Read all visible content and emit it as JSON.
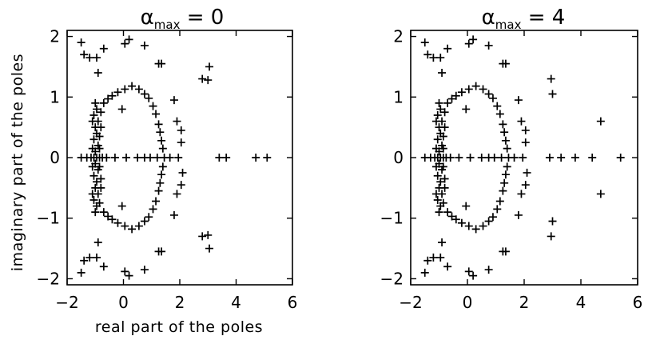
{
  "chart_data": [
    {
      "type": "scatter",
      "marker": "plus",
      "title": {
        "symbol": "α",
        "subscript": "max",
        "rest": " = 0"
      },
      "xlabel": "real part of the poles",
      "ylabel": "imaginary part of the poles",
      "xlim": [
        -2,
        6
      ],
      "ylim": [
        -2.1,
        2.1
      ],
      "xticks": [
        -2,
        0,
        2,
        4,
        6
      ],
      "yticks": [
        -2,
        -1,
        0,
        1,
        2
      ],
      "grid": false,
      "points": [
        [
          -1.5,
          0
        ],
        [
          -1.3,
          0
        ],
        [
          -1.15,
          0
        ],
        [
          -1.05,
          0
        ],
        [
          -0.95,
          0
        ],
        [
          -0.85,
          0
        ],
        [
          -0.75,
          0
        ],
        [
          -0.6,
          0
        ],
        [
          -0.3,
          0
        ],
        [
          0.1,
          0
        ],
        [
          0.5,
          0
        ],
        [
          0.75,
          0
        ],
        [
          0.95,
          0
        ],
        [
          1.2,
          0
        ],
        [
          1.45,
          0
        ],
        [
          1.65,
          0
        ],
        [
          1.95,
          0
        ],
        [
          3.4,
          0
        ],
        [
          3.65,
          0
        ],
        [
          4.7,
          0
        ],
        [
          5.1,
          0
        ],
        [
          -1.0,
          0.9
        ],
        [
          -0.95,
          0.8
        ],
        [
          -1.05,
          0.7
        ],
        [
          -0.9,
          0.6
        ],
        [
          -1.0,
          0.5
        ],
        [
          -0.95,
          0.4
        ],
        [
          -1.05,
          0.3
        ],
        [
          -0.9,
          0.2
        ],
        [
          -1.0,
          0.1
        ],
        [
          -1.0,
          -0.9
        ],
        [
          -0.95,
          -0.8
        ],
        [
          -1.05,
          -0.7
        ],
        [
          -0.9,
          -0.6
        ],
        [
          -1.0,
          -0.5
        ],
        [
          -0.95,
          -0.4
        ],
        [
          -1.05,
          -0.3
        ],
        [
          -0.9,
          -0.2
        ],
        [
          -1.0,
          -0.1
        ],
        [
          -0.8,
          0.75
        ],
        [
          -0.85,
          0.35
        ],
        [
          -0.8,
          -0.35
        ],
        [
          -0.85,
          -0.75
        ],
        [
          -0.8,
          0.5
        ],
        [
          -0.8,
          -0.5
        ],
        [
          -0.85,
          0.15
        ],
        [
          -0.85,
          -0.15
        ],
        [
          -1.1,
          0.15
        ],
        [
          -1.1,
          -0.15
        ],
        [
          -1.1,
          0.6
        ],
        [
          -1.1,
          -0.6
        ],
        [
          -0.7,
          0.9
        ],
        [
          -0.55,
          0.97
        ],
        [
          -0.4,
          1.02
        ],
        [
          -0.2,
          1.08
        ],
        [
          0.05,
          1.13
        ],
        [
          0.3,
          1.18
        ],
        [
          0.55,
          1.13
        ],
        [
          0.75,
          1.05
        ],
        [
          0.9,
          0.98
        ],
        [
          1.05,
          0.85
        ],
        [
          1.15,
          0.72
        ],
        [
          1.25,
          0.55
        ],
        [
          1.3,
          0.42
        ],
        [
          1.35,
          0.28
        ],
        [
          1.4,
          0.15
        ],
        [
          -0.7,
          -0.9
        ],
        [
          -0.55,
          -0.97
        ],
        [
          -0.4,
          -1.02
        ],
        [
          -0.2,
          -1.08
        ],
        [
          0.05,
          -1.13
        ],
        [
          0.3,
          -1.18
        ],
        [
          0.55,
          -1.13
        ],
        [
          0.75,
          -1.05
        ],
        [
          0.9,
          -0.98
        ],
        [
          1.05,
          -0.85
        ],
        [
          1.15,
          -0.72
        ],
        [
          1.25,
          -0.55
        ],
        [
          1.3,
          -0.42
        ],
        [
          1.35,
          -0.28
        ],
        [
          1.4,
          -0.15
        ],
        [
          -0.9,
          1.4
        ],
        [
          -0.9,
          -1.4
        ],
        [
          -0.05,
          0.8
        ],
        [
          -0.05,
          -0.8
        ],
        [
          1.9,
          0.6
        ],
        [
          2.05,
          0.45
        ],
        [
          1.9,
          -0.6
        ],
        [
          2.05,
          -0.45
        ],
        [
          2.05,
          0.25
        ],
        [
          2.1,
          -0.25
        ],
        [
          1.8,
          0.95
        ],
        [
          1.8,
          -0.95
        ],
        [
          -1.5,
          1.9
        ],
        [
          -1.2,
          1.65
        ],
        [
          -1.4,
          1.7
        ],
        [
          -0.7,
          1.8
        ],
        [
          -0.95,
          1.65
        ],
        [
          0.2,
          1.95
        ],
        [
          0.05,
          1.88
        ],
        [
          0.75,
          1.85
        ],
        [
          1.25,
          1.55
        ],
        [
          1.35,
          1.55
        ],
        [
          2.8,
          1.3
        ],
        [
          3.0,
          1.28
        ],
        [
          3.05,
          1.5
        ],
        [
          -1.5,
          -1.9
        ],
        [
          -1.2,
          -1.65
        ],
        [
          -1.4,
          -1.7
        ],
        [
          -0.7,
          -1.8
        ],
        [
          -0.95,
          -1.65
        ],
        [
          0.2,
          -1.95
        ],
        [
          0.05,
          -1.88
        ],
        [
          0.75,
          -1.85
        ],
        [
          1.25,
          -1.55
        ],
        [
          1.35,
          -1.55
        ],
        [
          2.8,
          -1.3
        ],
        [
          3.0,
          -1.28
        ],
        [
          3.05,
          -1.5
        ]
      ]
    },
    {
      "type": "scatter",
      "marker": "plus",
      "title": {
        "symbol": "α",
        "subscript": "max",
        "rest": " = 4"
      },
      "xlabel": "",
      "ylabel": "",
      "xlim": [
        -2,
        6
      ],
      "ylim": [
        -2.1,
        2.1
      ],
      "xticks": [
        -2,
        0,
        2,
        4,
        6
      ],
      "yticks": [
        -2,
        -1,
        0,
        1,
        2
      ],
      "grid": false,
      "points": [
        [
          -1.5,
          0
        ],
        [
          -1.3,
          0
        ],
        [
          -1.15,
          0
        ],
        [
          -1.05,
          0
        ],
        [
          -0.95,
          0
        ],
        [
          -0.85,
          0
        ],
        [
          -0.75,
          0
        ],
        [
          -0.6,
          0
        ],
        [
          -0.3,
          0
        ],
        [
          0.1,
          0
        ],
        [
          0.5,
          0
        ],
        [
          0.75,
          0
        ],
        [
          0.95,
          0
        ],
        [
          1.2,
          0
        ],
        [
          1.45,
          0
        ],
        [
          1.65,
          0
        ],
        [
          1.95,
          0
        ],
        [
          2.9,
          0
        ],
        [
          3.3,
          0
        ],
        [
          3.8,
          0
        ],
        [
          4.4,
          0
        ],
        [
          5.4,
          0
        ],
        [
          -1.0,
          0.9
        ],
        [
          -0.95,
          0.8
        ],
        [
          -1.05,
          0.7
        ],
        [
          -0.9,
          0.6
        ],
        [
          -1.0,
          0.5
        ],
        [
          -0.95,
          0.4
        ],
        [
          -1.05,
          0.3
        ],
        [
          -0.9,
          0.2
        ],
        [
          -1.0,
          0.1
        ],
        [
          -1.0,
          -0.9
        ],
        [
          -0.95,
          -0.8
        ],
        [
          -1.05,
          -0.7
        ],
        [
          -0.9,
          -0.6
        ],
        [
          -1.0,
          -0.5
        ],
        [
          -0.95,
          -0.4
        ],
        [
          -1.05,
          -0.3
        ],
        [
          -0.9,
          -0.2
        ],
        [
          -1.0,
          -0.1
        ],
        [
          -0.8,
          0.75
        ],
        [
          -0.85,
          0.35
        ],
        [
          -0.8,
          -0.35
        ],
        [
          -0.85,
          -0.75
        ],
        [
          -0.8,
          0.5
        ],
        [
          -0.8,
          -0.5
        ],
        [
          -0.85,
          0.15
        ],
        [
          -0.85,
          -0.15
        ],
        [
          -1.1,
          0.15
        ],
        [
          -1.1,
          -0.15
        ],
        [
          -1.1,
          0.6
        ],
        [
          -1.1,
          -0.6
        ],
        [
          -0.7,
          0.9
        ],
        [
          -0.55,
          0.97
        ],
        [
          -0.4,
          1.02
        ],
        [
          -0.2,
          1.08
        ],
        [
          0.05,
          1.13
        ],
        [
          0.3,
          1.18
        ],
        [
          0.55,
          1.13
        ],
        [
          0.75,
          1.05
        ],
        [
          0.9,
          0.98
        ],
        [
          1.05,
          0.85
        ],
        [
          1.15,
          0.72
        ],
        [
          1.25,
          0.55
        ],
        [
          1.3,
          0.42
        ],
        [
          1.35,
          0.28
        ],
        [
          1.4,
          0.15
        ],
        [
          -0.7,
          -0.9
        ],
        [
          -0.55,
          -0.97
        ],
        [
          -0.4,
          -1.02
        ],
        [
          -0.2,
          -1.08
        ],
        [
          0.05,
          -1.13
        ],
        [
          0.3,
          -1.18
        ],
        [
          0.55,
          -1.13
        ],
        [
          0.75,
          -1.05
        ],
        [
          0.9,
          -0.98
        ],
        [
          1.05,
          -0.85
        ],
        [
          1.15,
          -0.72
        ],
        [
          1.25,
          -0.55
        ],
        [
          1.3,
          -0.42
        ],
        [
          1.35,
          -0.28
        ],
        [
          1.4,
          -0.15
        ],
        [
          -0.9,
          1.4
        ],
        [
          -0.9,
          -1.4
        ],
        [
          -0.05,
          0.8
        ],
        [
          -0.05,
          -0.8
        ],
        [
          1.9,
          0.6
        ],
        [
          2.05,
          0.45
        ],
        [
          1.9,
          -0.6
        ],
        [
          2.05,
          -0.45
        ],
        [
          2.05,
          0.25
        ],
        [
          2.1,
          -0.25
        ],
        [
          1.8,
          0.95
        ],
        [
          1.8,
          -0.95
        ],
        [
          -1.5,
          1.9
        ],
        [
          -1.2,
          1.65
        ],
        [
          -1.4,
          1.7
        ],
        [
          -0.7,
          1.8
        ],
        [
          -0.95,
          1.65
        ],
        [
          0.2,
          1.95
        ],
        [
          0.05,
          1.88
        ],
        [
          0.75,
          1.85
        ],
        [
          1.25,
          1.55
        ],
        [
          1.35,
          1.55
        ],
        [
          2.95,
          1.3
        ],
        [
          3.0,
          1.05
        ],
        [
          4.7,
          0.6
        ],
        [
          -1.5,
          -1.9
        ],
        [
          -1.2,
          -1.65
        ],
        [
          -1.4,
          -1.7
        ],
        [
          -0.7,
          -1.8
        ],
        [
          -0.95,
          -1.65
        ],
        [
          0.2,
          -1.95
        ],
        [
          0.05,
          -1.88
        ],
        [
          0.75,
          -1.85
        ],
        [
          1.25,
          -1.55
        ],
        [
          1.35,
          -1.55
        ],
        [
          2.95,
          -1.3
        ],
        [
          3.0,
          -1.05
        ],
        [
          4.7,
          -0.6
        ]
      ]
    }
  ]
}
